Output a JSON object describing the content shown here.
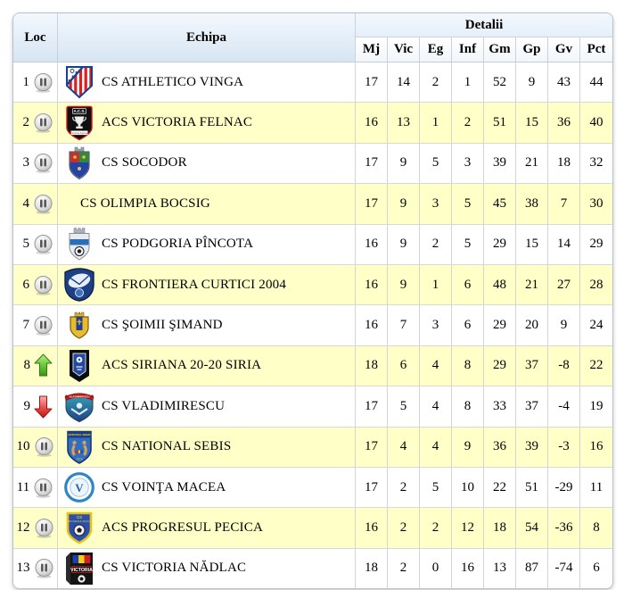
{
  "table": {
    "header": {
      "loc_label": "Loc",
      "echipa_label": "Echipa",
      "detalii_label": "Detalii",
      "stat_columns": [
        "Mj",
        "Vic",
        "Eg",
        "Inf",
        "Gm",
        "Gp",
        "Gv",
        "Pct"
      ]
    },
    "colors": {
      "highlight_row": "#ffffc8",
      "row_background": "#ffffff",
      "header_gradient_top": "#f3f8fd",
      "header_gradient_bottom": "#d7e5f3",
      "up_arrow_green": "#3a9314",
      "down_arrow_red": "#c01414",
      "pause_icon_gray": "#bdbdbd",
      "grid_border": "#d4d4d4"
    },
    "logo_texts": {
      "victoria-felnac-logo": [
        "A.C.S.",
        "Victoria Felnac"
      ],
      "vladimirescu-logo": [
        "VLADIMIRESCU"
      ],
      "national-sebis-logo": [
        "NATIONAL SEBIS",
        "1910"
      ],
      "progresul-pecica-logo": [
        "CS",
        "PROGRESUL PECICA"
      ],
      "victoria-nadlac-logo": [
        "VICTORIA"
      ]
    },
    "rows": [
      {
        "loc": "1",
        "trend": "pause",
        "team": "CS ATHLETICO VINGA",
        "logo": "athletico-vinga-logo",
        "highlight": false,
        "stats": [
          "17",
          "14",
          "2",
          "1",
          "52",
          "9",
          "43",
          "44"
        ]
      },
      {
        "loc": "2",
        "trend": "pause",
        "team": "ACS VICTORIA FELNAC",
        "logo": "victoria-felnac-logo",
        "highlight": true,
        "stats": [
          "16",
          "13",
          "1",
          "2",
          "51",
          "15",
          "36",
          "40"
        ]
      },
      {
        "loc": "3",
        "trend": "pause",
        "team": "CS SOCODOR",
        "logo": "socodor-logo",
        "highlight": false,
        "stats": [
          "17",
          "9",
          "5",
          "3",
          "39",
          "21",
          "18",
          "32"
        ]
      },
      {
        "loc": "4",
        "trend": "pause",
        "team": "CS OLIMPIA BOCSIG",
        "logo": null,
        "highlight": true,
        "stats": [
          "17",
          "9",
          "3",
          "5",
          "45",
          "38",
          "7",
          "30"
        ]
      },
      {
        "loc": "5",
        "trend": "pause",
        "team": "CS PODGORIA PÎNCOTA",
        "logo": "podgoria-pincota-logo",
        "highlight": false,
        "stats": [
          "16",
          "9",
          "2",
          "5",
          "29",
          "15",
          "14",
          "29"
        ]
      },
      {
        "loc": "6",
        "trend": "pause",
        "team": "CS FRONTIERA CURTICI 2004",
        "logo": "frontiera-curtici-logo",
        "highlight": true,
        "stats": [
          "16",
          "9",
          "1",
          "6",
          "48",
          "21",
          "27",
          "28"
        ]
      },
      {
        "loc": "7",
        "trend": "pause",
        "team": "CS ŞOIMII ŞIMAND",
        "logo": "soimii-simand-logo",
        "highlight": false,
        "stats": [
          "16",
          "7",
          "3",
          "6",
          "29",
          "20",
          "9",
          "24"
        ]
      },
      {
        "loc": "8",
        "trend": "up",
        "team": "ACS SIRIANA 20-20 SIRIA",
        "logo": "siriana-logo",
        "highlight": true,
        "stats": [
          "18",
          "6",
          "4",
          "8",
          "29",
          "37",
          "-8",
          "22"
        ]
      },
      {
        "loc": "9",
        "trend": "down",
        "team": "CS VLADIMIRESCU",
        "logo": "vladimirescu-logo",
        "highlight": false,
        "stats": [
          "17",
          "5",
          "4",
          "8",
          "33",
          "37",
          "-4",
          "19"
        ]
      },
      {
        "loc": "10",
        "trend": "pause",
        "team": "CS NATIONAL SEBIS",
        "logo": "national-sebis-logo",
        "highlight": true,
        "stats": [
          "17",
          "4",
          "4",
          "9",
          "36",
          "39",
          "-3",
          "16"
        ]
      },
      {
        "loc": "11",
        "trend": "pause",
        "team": "CS VOINŢA MACEA",
        "logo": "vointa-macea-logo",
        "highlight": false,
        "stats": [
          "17",
          "2",
          "5",
          "10",
          "22",
          "51",
          "-29",
          "11"
        ]
      },
      {
        "loc": "12",
        "trend": "pause",
        "team": "ACS PROGRESUL PECICA",
        "logo": "progresul-pecica-logo",
        "highlight": true,
        "stats": [
          "16",
          "2",
          "2",
          "12",
          "18",
          "54",
          "-36",
          "8"
        ]
      },
      {
        "loc": "13",
        "trend": "pause",
        "team": "CS VICTORIA NĂDLAC",
        "logo": "victoria-nadlac-logo",
        "highlight": false,
        "stats": [
          "18",
          "2",
          "0",
          "16",
          "13",
          "87",
          "-74",
          "6"
        ]
      }
    ]
  }
}
